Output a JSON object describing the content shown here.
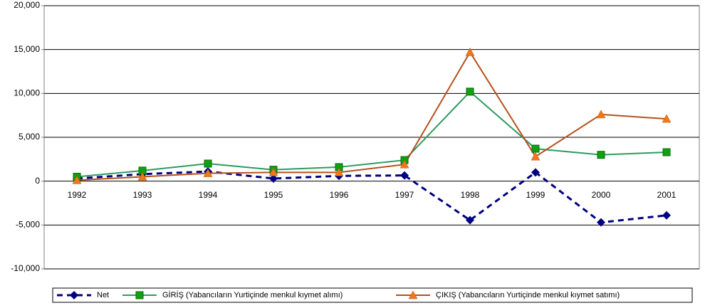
{
  "chart_data": {
    "type": "line",
    "categories": [
      "1992",
      "1993",
      "1994",
      "1995",
      "1996",
      "1997",
      "1998",
      "1999",
      "2000",
      "2001"
    ],
    "series": [
      {
        "name": "Net",
        "color": "#000080",
        "marker": "diamond",
        "marker_color": "#000080",
        "dashed": true,
        "values": [
          300,
          800,
          1100,
          300,
          600,
          650,
          -4450,
          1000,
          -4700,
          -3900
        ]
      },
      {
        "name": "GİRİŞ (Yabancıların Yurtiçinde menkul kıymet alımı)",
        "color": "#2e9b5e",
        "marker": "square",
        "marker_color": "#11a011",
        "dashed": false,
        "values": [
          500,
          1200,
          2000,
          1300,
          1600,
          2400,
          10200,
          3700,
          3000,
          3300
        ]
      },
      {
        "name": "ÇIKIŞ (Yabancıların Yurtiçinde menkul kıymet satımı)",
        "color": "#b5501c",
        "marker": "triangle",
        "marker_color": "#f07818",
        "dashed": false,
        "values": [
          100,
          500,
          900,
          1000,
          1000,
          1900,
          14700,
          2800,
          7600,
          7100
        ]
      }
    ],
    "ylim": [
      -10000,
      20000
    ],
    "yticks": [
      {
        "value": -10000,
        "label": "-10,000"
      },
      {
        "value": -5000,
        "label": "-5,000"
      },
      0,
      {
        "value": 5000,
        "label": "5,000"
      },
      {
        "value": 10000,
        "label": "10,000"
      },
      {
        "value": 15000,
        "label": "15,000"
      },
      {
        "value": 20000,
        "label": "20,000"
      }
    ],
    "grid": true
  }
}
